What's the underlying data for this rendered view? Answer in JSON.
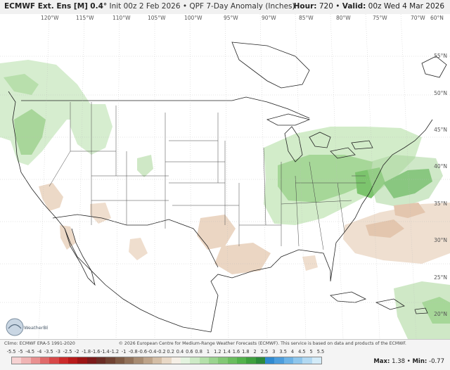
{
  "header": {
    "model": "ECMWF Ext. Ens [M]",
    "res": "0.4°",
    "init": "Init 00z 2 Feb 2026",
    "product": "QPF 7-Day Anomaly (Inches)",
    "hour_label": "Hour:",
    "hour": "720",
    "valid_label": "Valid:",
    "valid": "00z Wed 4 Mar 2026"
  },
  "map": {
    "lon_labels": [
      "120°W",
      "115°W",
      "110°W",
      "105°W",
      "100°W",
      "95°W",
      "90°W",
      "85°W",
      "80°W",
      "75°W",
      "70°W",
      "60°N"
    ],
    "lat_labels": [
      "55°N",
      "50°N",
      "45°N",
      "40°N",
      "35°N",
      "30°N",
      "25°N",
      "20°N"
    ],
    "logo_text": "WeatherBELL",
    "legend_colors": {
      "wet_light": "#cfe8c6",
      "wet_mid": "#9fd08f",
      "wet_dark": "#5bb55a",
      "dry_light": "#efddcf",
      "dry_mid": "#e2c3aa"
    }
  },
  "footer": {
    "climo": "Climo: ECMWF ERA-5 1991-2020",
    "copyright": "© 2026 European Centre for Medium-Range Weather Forecasts (ECMWF). This service is based on data and products of the ECMWF.",
    "ticks": [
      "-5.5",
      "-5",
      "-4.5",
      "-4",
      "-3.5",
      "-3",
      "-2.5",
      "-2",
      "-1.8",
      "-1.6",
      "-1.4",
      "-1.2",
      "-1",
      "-0.8",
      "-0.6",
      "-0.4",
      "-0.2",
      "0.2",
      "0.4",
      "0.6",
      "0.8",
      "1",
      "1.2",
      "1.4",
      "1.6",
      "1.8",
      "2",
      "2.5",
      "3",
      "3.5",
      "4",
      "4.5",
      "5",
      "5.5"
    ],
    "colors": [
      "#f6d2d2",
      "#f0b4b4",
      "#e99090",
      "#e06a6a",
      "#d84848",
      "#cc2a2a",
      "#b81a1a",
      "#9c1414",
      "#7c1a1a",
      "#6a2c24",
      "#704232",
      "#7e5a44",
      "#92725a",
      "#a88c72",
      "#bea48a",
      "#d4bea6",
      "#e8d8c6",
      "#f5efe6",
      "#e3f3df",
      "#cdeac6",
      "#b4e0aa",
      "#9ad48f",
      "#82c875",
      "#6abd5e",
      "#52b24b",
      "#3ea03e",
      "#2c8a3a",
      "#2f8ad0",
      "#4c9ddc",
      "#6db3e6",
      "#8fc6ec",
      "#b2d9f2",
      "#d3ebf8"
    ],
    "max_label": "Max:",
    "max": "1.38",
    "min_label": "Min:",
    "min": "-0.77"
  }
}
